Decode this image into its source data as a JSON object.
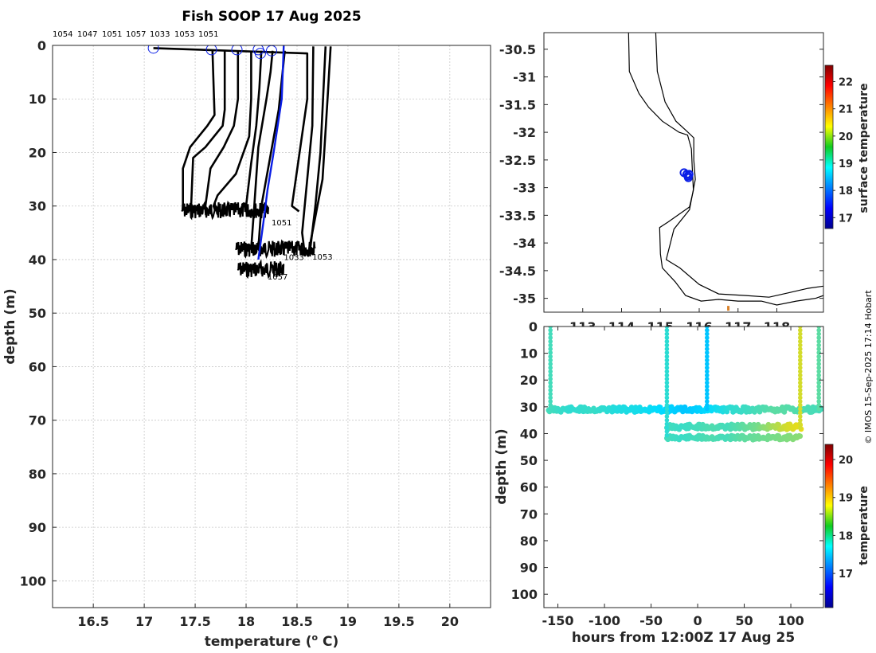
{
  "title": "Fish SOOP 17 Aug 2025",
  "credit": "© IMOS 15-Sep-2025 17:14 Hobart",
  "colors": {
    "surface_mean": "#0a1ee6",
    "profile": "#000000",
    "axis": "#262626",
    "grid": "#c8c8c8"
  },
  "chart_data": [
    {
      "id": "profiles",
      "type": "line",
      "title": "Fish SOOP 17 Aug 2025",
      "xlabel": "temperature (",
      "xlabel_sup": "o",
      "xlabel_end": " C)",
      "ylabel": "depth (m)",
      "xlim": [
        16.1,
        20.4
      ],
      "ylim": [
        105,
        0
      ],
      "xticks": [
        16.5,
        17,
        17.5,
        18,
        18.5,
        19,
        19.5,
        20
      ],
      "xtick_labels": [
        "16.5",
        "17",
        "17.5",
        "18",
        "18.5",
        "19",
        "19.5",
        "20"
      ],
      "yticks": [
        0,
        10,
        20,
        30,
        40,
        50,
        60,
        70,
        80,
        90,
        100
      ],
      "ytick_labels": [
        "0",
        "10",
        "20",
        "30",
        "40",
        "50",
        "60",
        "70",
        "80",
        "90",
        "100"
      ],
      "top_labels": [
        "1054",
        "1047",
        "1051",
        "1057",
        "1033",
        "1053",
        "1051"
      ],
      "surface_markers": [
        {
          "t": 17.09,
          "d": 0.5
        },
        {
          "t": 17.66,
          "d": 0.8
        },
        {
          "t": 17.91,
          "d": 0.8
        },
        {
          "t": 18.12,
          "d": 0.8
        },
        {
          "t": 18.14,
          "d": 1.5
        },
        {
          "t": 18.25,
          "d": 1.0
        }
      ],
      "series": [
        {
          "name": "profile 1",
          "points": [
            [
              17.09,
              0.5
            ],
            [
              18.6,
              1.5
            ],
            [
              18.6,
              10
            ],
            [
              18.45,
              30
            ],
            [
              18.52,
              31
            ]
          ]
        },
        {
          "name": "profile 2",
          "points": [
            [
              18.66,
              0.2
            ],
            [
              18.65,
              15
            ],
            [
              18.6,
              25
            ],
            [
              18.55,
              35
            ],
            [
              18.57,
              38
            ]
          ]
        },
        {
          "name": "profile 3",
          "points": [
            [
              18.78,
              0.2
            ],
            [
              18.73,
              20
            ],
            [
              18.68,
              30
            ],
            [
              18.63,
              38
            ],
            [
              18.65,
              39
            ]
          ]
        },
        {
          "name": "profile 4",
          "points": [
            [
              18.83,
              0.2
            ],
            [
              18.8,
              10
            ],
            [
              18.75,
              25
            ],
            [
              18.68,
              32
            ],
            [
              18.62,
              38
            ],
            [
              18.65,
              39
            ]
          ]
        },
        {
          "name": "profile 5",
          "points": [
            [
              17.67,
              1
            ],
            [
              17.69,
              13
            ],
            [
              17.62,
              15
            ],
            [
              17.45,
              19
            ],
            [
              17.38,
              23
            ],
            [
              17.38,
              30
            ],
            [
              17.4,
              31
            ]
          ]
        },
        {
          "name": "profile 6",
          "points": [
            [
              17.79,
              1
            ],
            [
              17.79,
              12
            ],
            [
              17.77,
              15
            ],
            [
              17.6,
              19
            ],
            [
              17.48,
              21
            ],
            [
              17.46,
              30
            ],
            [
              17.48,
              31
            ]
          ]
        },
        {
          "name": "profile 7",
          "points": [
            [
              17.92,
              1
            ],
            [
              17.92,
              10
            ],
            [
              17.88,
              15
            ],
            [
              17.78,
              19
            ],
            [
              17.65,
              23
            ],
            [
              17.6,
              30
            ],
            [
              17.62,
              31
            ]
          ]
        },
        {
          "name": "profile 8",
          "points": [
            [
              18.05,
              1
            ],
            [
              18.05,
              10
            ],
            [
              18.03,
              17
            ],
            [
              17.9,
              24
            ],
            [
              17.72,
              28
            ],
            [
              17.68,
              30
            ],
            [
              17.7,
              31
            ]
          ]
        },
        {
          "name": "profile 9",
          "points": [
            [
              18.15,
              1
            ],
            [
              18.13,
              8
            ],
            [
              18.1,
              15
            ],
            [
              18.05,
              22
            ],
            [
              18.0,
              30
            ],
            [
              18.02,
              31
            ]
          ]
        },
        {
          "name": "profile 10",
          "points": [
            [
              18.26,
              1
            ],
            [
              18.24,
              5
            ],
            [
              18.2,
              10
            ],
            [
              18.12,
              19
            ],
            [
              18.08,
              30
            ],
            [
              18.05,
              38
            ],
            [
              18.1,
              39
            ]
          ]
        },
        {
          "name": "profile 11",
          "points": [
            [
              18.38,
              1
            ],
            [
              18.32,
              12
            ],
            [
              18.15,
              30
            ],
            [
              18.12,
              38
            ],
            [
              18.15,
              39
            ]
          ]
        },
        {
          "name": "mean",
          "color": "#0a1ee6",
          "points": [
            [
              18.37,
              0
            ],
            [
              18.35,
              10
            ],
            [
              18.27,
              20
            ],
            [
              18.21,
              27
            ],
            [
              18.17,
              33
            ],
            [
              18.12,
              40
            ]
          ]
        }
      ],
      "noise_bands": [
        {
          "t_min": 17.37,
          "t_max": 18.22,
          "d": 30.8,
          "amp": 1.5
        },
        {
          "t_min": 17.9,
          "t_max": 18.68,
          "d": 38.0,
          "amp": 1.5
        },
        {
          "t_min": 17.92,
          "t_max": 18.37,
          "d": 41.8,
          "amp": 1.5
        }
      ],
      "end_labels": [
        {
          "text": "1051",
          "t": 18.25,
          "d": 33.6
        },
        {
          "text": "1033",
          "t": 18.37,
          "d": 40.1
        },
        {
          "text": "1053",
          "t": 18.65,
          "d": 40.0
        },
        {
          "text": "1057",
          "t": 18.21,
          "d": 43.7
        }
      ]
    },
    {
      "id": "map",
      "type": "scatter",
      "xlim": [
        112.0,
        119.2
      ],
      "ylim": [
        -35.25,
        -30.2
      ],
      "xticks": [
        113,
        114,
        115,
        116,
        117,
        118
      ],
      "xtick_labels": [
        "113",
        "114",
        "115",
        "116",
        "117",
        "118"
      ],
      "yticks": [
        -30.5,
        -31,
        -31.5,
        -32,
        -32.5,
        -33,
        -33.5,
        -34,
        -34.5,
        -35
      ],
      "ytick_labels": [
        "-30.5",
        "-31",
        "-31.5",
        "-32",
        "-32.5",
        "-33",
        "-33.5",
        "-34",
        "-34.5",
        "-35"
      ],
      "positions": [
        {
          "lon": 115.61,
          "lat": -32.73
        },
        {
          "lon": 115.68,
          "lat": -32.76
        },
        {
          "lon": 115.71,
          "lat": -32.79
        },
        {
          "lon": 115.74,
          "lat": -32.76
        },
        {
          "lon": 115.72,
          "lat": -32.82
        }
      ],
      "coast_outer": [
        [
          114.18,
          -30.2
        ],
        [
          114.2,
          -30.9
        ],
        [
          114.45,
          -31.3
        ],
        [
          114.7,
          -31.55
        ],
        [
          115.05,
          -31.8
        ],
        [
          115.48,
          -32.0
        ],
        [
          115.7,
          -32.05
        ],
        [
          115.8,
          -32.3
        ],
        [
          115.82,
          -32.62
        ],
        [
          115.85,
          -33.05
        ],
        [
          115.75,
          -33.35
        ],
        [
          115.2,
          -33.62
        ],
        [
          114.98,
          -33.72
        ],
        [
          115.0,
          -34.2
        ],
        [
          115.05,
          -34.45
        ],
        [
          115.38,
          -34.7
        ],
        [
          115.65,
          -34.95
        ],
        [
          116.05,
          -35.05
        ],
        [
          116.5,
          -35.02
        ],
        [
          117.0,
          -35.05
        ],
        [
          117.6,
          -35.05
        ],
        [
          118.0,
          -35.12
        ],
        [
          118.5,
          -35.05
        ],
        [
          119.0,
          -35.0
        ],
        [
          119.2,
          -34.95
        ]
      ],
      "coast_inner": [
        [
          114.88,
          -30.2
        ],
        [
          114.92,
          -30.9
        ],
        [
          115.12,
          -31.45
        ],
        [
          115.4,
          -31.8
        ],
        [
          115.68,
          -31.98
        ],
        [
          115.86,
          -32.1
        ],
        [
          115.86,
          -32.5
        ],
        [
          115.9,
          -32.85
        ],
        [
          115.75,
          -33.4
        ],
        [
          115.35,
          -33.75
        ],
        [
          115.15,
          -34.3
        ],
        [
          115.5,
          -34.45
        ],
        [
          116.0,
          -34.75
        ],
        [
          116.5,
          -34.92
        ],
        [
          117.2,
          -34.95
        ],
        [
          117.8,
          -34.98
        ],
        [
          118.3,
          -34.9
        ],
        [
          118.8,
          -34.82
        ],
        [
          119.2,
          -34.78
        ]
      ],
      "land_marker": {
        "lon": 116.75,
        "lat": -35.18,
        "color": "#d9822b"
      },
      "colorbar": {
        "label": "surface temperature",
        "range": [
          16.6,
          22.6
        ],
        "ticks": [
          17,
          18,
          19,
          20,
          21,
          22
        ],
        "tick_labels": [
          "17",
          "18",
          "19",
          "20",
          "21",
          "22"
        ]
      }
    },
    {
      "id": "time_depth",
      "type": "scatter",
      "xlabel": "hours from 12:00Z 17 Aug 25",
      "ylabel": "depth (m)",
      "xlim": [
        -165,
        135
      ],
      "ylim": [
        105,
        0
      ],
      "xticks": [
        -150,
        -100,
        -50,
        0,
        50,
        100
      ],
      "xtick_labels": [
        "-150",
        "-100",
        "-50",
        "0",
        "50",
        "100"
      ],
      "yticks": [
        0,
        10,
        20,
        30,
        40,
        50,
        60,
        70,
        80,
        90,
        100
      ],
      "ytick_labels": [
        "0",
        "10",
        "20",
        "30",
        "40",
        "50",
        "60",
        "70",
        "80",
        "90",
        "100"
      ],
      "verticals": [
        {
          "t": -158,
          "d0": 0,
          "d1": 30,
          "temp": 18.0
        },
        {
          "t": -33,
          "d0": 0,
          "d1": 41,
          "temp": 17.9
        },
        {
          "t": 10,
          "d0": 0,
          "d1": 31,
          "temp": 17.6
        },
        {
          "t": 110,
          "d0": 0,
          "d1": 38,
          "temp": 18.6
        },
        {
          "t": 130,
          "d0": 0,
          "d1": 32,
          "temp": 18.1
        }
      ],
      "bands": [
        {
          "t0": -160,
          "t1": 133,
          "d": 31.0,
          "amp": 1.0,
          "temps": [
            18.0,
            17.9,
            17.95,
            17.85,
            17.8,
            17.7,
            17.6,
            17.7,
            17.9,
            18.0,
            18.1,
            18.05,
            18.0
          ]
        },
        {
          "t0": -33,
          "t1": 112,
          "d": 37.5,
          "amp": 1.0,
          "temps": [
            18.0,
            17.95,
            18.0,
            18.05,
            18.0,
            18.1,
            18.2,
            18.4,
            18.6,
            18.7
          ]
        },
        {
          "t0": -33,
          "t1": 110,
          "d": 41.5,
          "amp": 0.8,
          "temps": [
            18.0,
            17.95,
            18.0,
            18.05,
            18.0,
            18.1,
            18.15,
            18.2,
            18.25,
            18.3
          ]
        }
      ],
      "colorbar": {
        "label": "temperature",
        "range": [
          16.1,
          20.4
        ],
        "ticks": [
          17,
          18,
          19,
          20
        ],
        "tick_labels": [
          "17",
          "18",
          "19",
          "20"
        ]
      }
    }
  ]
}
